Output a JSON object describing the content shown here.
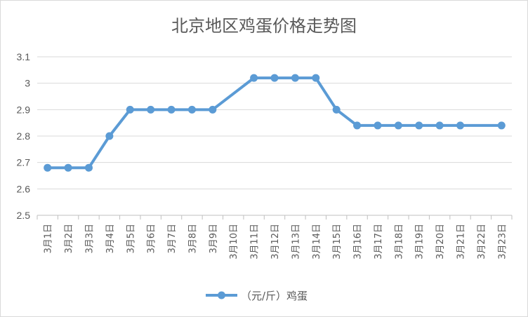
{
  "colors": {
    "series": "#5b9bd5"
  },
  "chart_data": {
    "type": "line",
    "title": "北京地区鸡蛋价格走势图",
    "categories": [
      "3月1日",
      "3月2日",
      "3月3日",
      "3月4日",
      "3月5日",
      "3月6日",
      "3月7日",
      "3月8日",
      "3月9日",
      "3月10日",
      "3月11日",
      "3月12日",
      "3月13日",
      "3月14日",
      "3月15日",
      "3月16日",
      "3月17日",
      "3月18日",
      "3月19日",
      "3月20日",
      "3月21日",
      "3月22日",
      "3月23日"
    ],
    "series": [
      {
        "name": "（元/斤）鸡蛋",
        "values": [
          2.68,
          2.68,
          2.68,
          2.8,
          2.9,
          2.9,
          2.9,
          2.9,
          2.9,
          null,
          3.02,
          3.02,
          3.02,
          3.02,
          2.9,
          2.84,
          2.84,
          2.84,
          2.84,
          2.84,
          2.84,
          null,
          2.84
        ]
      }
    ],
    "yticks": [
      "2.5",
      "2.6",
      "2.7",
      "2.8",
      "2.9",
      "3",
      "3.1"
    ],
    "ylim": [
      2.5,
      3.1
    ],
    "grid": true,
    "legend": "bottom"
  }
}
